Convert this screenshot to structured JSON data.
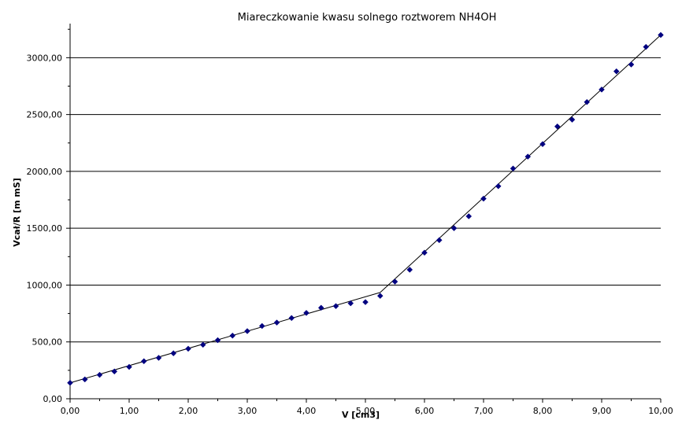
{
  "chart_data": {
    "type": "scatter",
    "title": "Miareczkowanie kwasu solnego roztworem NH4OH",
    "xlabel": "V [cm3]",
    "ylabel": "Vcał/R [m mS]",
    "xlim": [
      0,
      10
    ],
    "ylim": [
      0,
      3300
    ],
    "x_ticks": [
      "0,00",
      "1,00",
      "2,00",
      "3,00",
      "4,00",
      "5,00",
      "6,00",
      "7,00",
      "8,00",
      "9,00",
      "10,00"
    ],
    "y_ticks": [
      "0,00",
      "500,00",
      "1000,00",
      "1500,00",
      "2000,00",
      "2500,00",
      "3000,00"
    ],
    "grid": "horizontal",
    "series": [
      {
        "marker": "diamond",
        "color": "#000080",
        "x": [
          0,
          0.25,
          0.5,
          0.75,
          1.0,
          1.25,
          1.5,
          1.75,
          2.0,
          2.25,
          2.5,
          2.75,
          3.0,
          3.25,
          3.5,
          3.75,
          4.0,
          4.25,
          4.5,
          4.75,
          5.0,
          5.25,
          5.5,
          5.75,
          6.0,
          6.25,
          6.5,
          6.75,
          7.0,
          7.25,
          7.5,
          7.75,
          8.0,
          8.25,
          8.5,
          8.75,
          9.0,
          9.25,
          9.5,
          9.75,
          10.0
        ],
        "y": [
          140,
          170,
          210,
          240,
          280,
          330,
          360,
          400,
          440,
          475,
          515,
          555,
          595,
          640,
          670,
          710,
          755,
          800,
          815,
          840,
          850,
          905,
          1030,
          1135,
          1285,
          1395,
          1500,
          1605,
          1760,
          1870,
          2025,
          2130,
          2240,
          2395,
          2455,
          2610,
          2720,
          2880,
          2940,
          3095,
          3200
        ]
      }
    ],
    "trendlines": [
      {
        "x": [
          0,
          5.25
        ],
        "y": [
          140,
          935
        ]
      },
      {
        "x": [
          5.25,
          10.0
        ],
        "y": [
          935,
          3200
        ]
      }
    ]
  },
  "colors": {
    "marker": "#000080",
    "line": "#000000",
    "grid": "#000000",
    "background": "#ffffff"
  }
}
